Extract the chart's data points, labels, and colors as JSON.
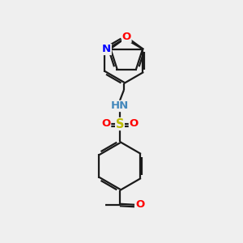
{
  "background_color": "#efefef",
  "bond_color": "#1a1a1a",
  "atom_colors": {
    "O": "#ff0000",
    "N_pyridine": "#0000ff",
    "N_sulfonamide": "#4488bb",
    "S": "#bbbb00",
    "C": "#1a1a1a",
    "H": "#4488bb"
  },
  "font_size": 9.5,
  "line_width": 1.6
}
